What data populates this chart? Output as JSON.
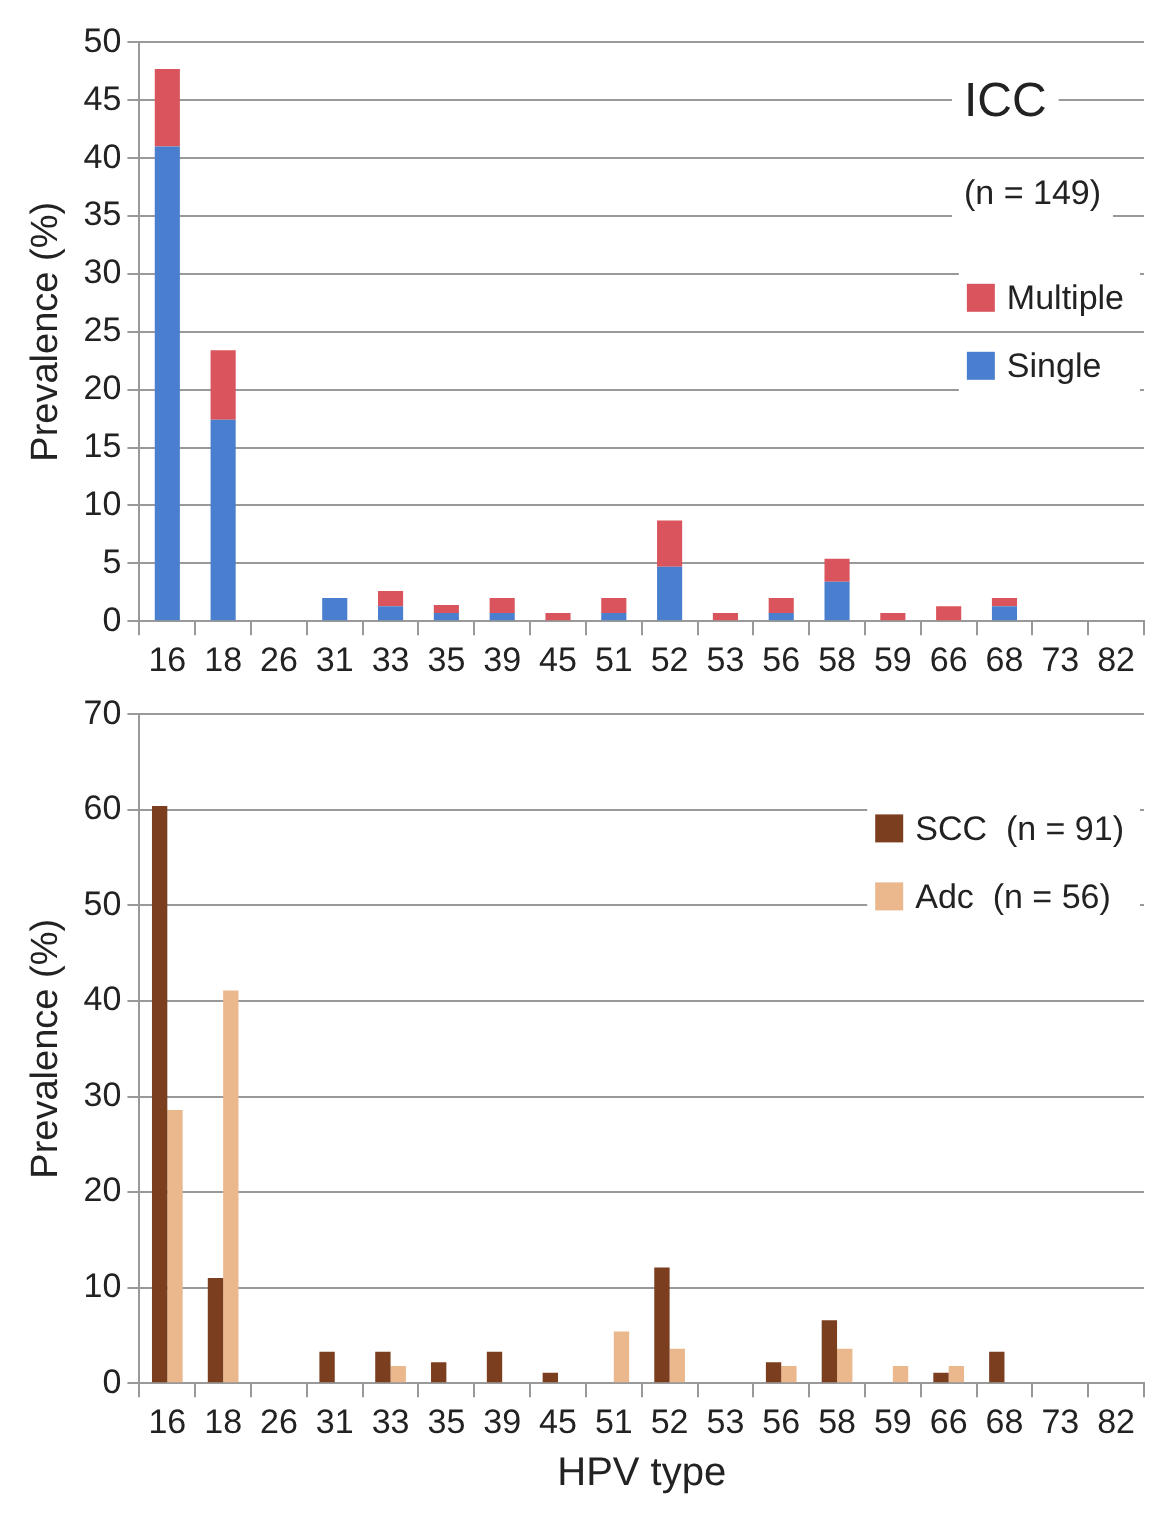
{
  "chart_data": [
    {
      "type": "bar",
      "ylabel": "Prevalence (%)",
      "categories": [
        "16",
        "18",
        "26",
        "31",
        "33",
        "35",
        "39",
        "45",
        "51",
        "52",
        "53",
        "56",
        "58",
        "59",
        "66",
        "68",
        "73",
        "82"
      ],
      "stacked": true,
      "series": [
        {
          "name": "Single",
          "color": "#4a7fcf",
          "values": [
            41,
            17.4,
            0,
            2.0,
            1.3,
            0.7,
            0.7,
            0,
            0.7,
            4.7,
            0,
            0.7,
            3.4,
            0,
            0,
            1.3,
            0,
            0
          ]
        },
        {
          "name": "Multiple",
          "color": "#d9545c",
          "values": [
            6.7,
            6.0,
            0,
            0,
            1.3,
            0.7,
            1.3,
            0.7,
            1.3,
            4.0,
            0.7,
            1.3,
            2.0,
            0.7,
            1.3,
            0.7,
            0,
            0
          ]
        }
      ],
      "ylim": [
        0,
        50
      ],
      "yticks": [
        0,
        5,
        10,
        15,
        20,
        25,
        30,
        35,
        40,
        45,
        50
      ],
      "grid": "y",
      "legend": "right",
      "annotations": [
        "ICC",
        "(n = 149)"
      ]
    },
    {
      "type": "bar",
      "xlabel": "HPV type",
      "ylabel": "Prevalence (%)",
      "categories": [
        "16",
        "18",
        "26",
        "31",
        "33",
        "35",
        "39",
        "45",
        "51",
        "52",
        "53",
        "56",
        "58",
        "59",
        "66",
        "68",
        "73",
        "82"
      ],
      "series": [
        {
          "name": "SCC  (n = 91)",
          "color": "#7b3f1f",
          "values": [
            60.4,
            11.0,
            0,
            3.3,
            3.3,
            2.2,
            3.3,
            1.1,
            0,
            12.1,
            0,
            2.2,
            6.6,
            0,
            1.1,
            3.3,
            0,
            0
          ]
        },
        {
          "name": "Adc  (n = 56)",
          "color": "#eab88c",
          "values": [
            28.6,
            41.1,
            0,
            0,
            1.8,
            0,
            0,
            0,
            5.4,
            3.6,
            0,
            1.8,
            3.6,
            1.8,
            1.8,
            0,
            0,
            0
          ]
        }
      ],
      "ylim": [
        0,
        70
      ],
      "yticks": [
        0,
        10,
        20,
        30,
        40,
        50,
        60,
        70
      ],
      "grid": "y",
      "legend": "top right"
    }
  ]
}
